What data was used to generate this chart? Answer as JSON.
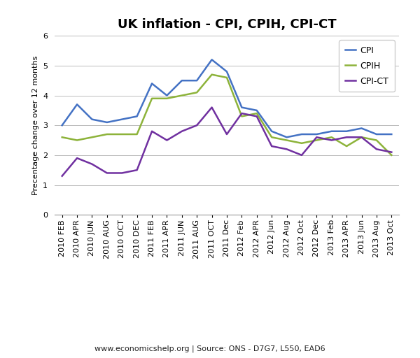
{
  "title": "UK inflation - CPI, CPIH, CPI-CT",
  "ylabel": "Precentage change over 12 months",
  "source_text": "www.economicshelp.org | Source: ONS - D7G7, L550, EAD6",
  "xlabels": [
    "2010 FEB",
    "2010 APR",
    "2010 JUN",
    "2010 AUG",
    "2010 OCT",
    "2010 DEC",
    "2011 FEB",
    "2011 APR",
    "2011 JUN",
    "2011 AUG",
    "2011 OCT",
    "2011 Dec",
    "2012 Feb",
    "2012 APR",
    "2012 Jun",
    "2012 Aug",
    "2012 Oct",
    "2012 Dec",
    "2013 Feb",
    "2013 APR",
    "2013 Jun",
    "2013 Aug",
    "2013 Oct"
  ],
  "cpi": [
    3.0,
    3.7,
    3.2,
    3.1,
    3.2,
    3.3,
    4.4,
    4.0,
    4.5,
    4.5,
    5.2,
    4.8,
    3.6,
    3.5,
    2.8,
    2.6,
    2.7,
    2.7,
    2.8,
    2.8,
    2.9,
    2.7,
    2.7
  ],
  "cpih": [
    2.6,
    2.5,
    2.6,
    2.7,
    2.7,
    2.7,
    3.9,
    3.9,
    4.0,
    4.1,
    4.7,
    4.6,
    3.3,
    3.4,
    2.6,
    2.5,
    2.4,
    2.5,
    2.6,
    2.3,
    2.6,
    2.5,
    2.0
  ],
  "cpict": [
    1.3,
    1.9,
    1.7,
    1.4,
    1.4,
    1.5,
    2.8,
    2.5,
    2.8,
    3.0,
    3.6,
    2.7,
    3.4,
    3.3,
    2.3,
    2.2,
    2.0,
    2.6,
    2.5,
    2.6,
    2.6,
    2.2,
    2.1
  ],
  "cpi_color": "#4472C4",
  "cpih_color": "#8DB33A",
  "cpict_color": "#7030A0",
  "ylim": [
    0,
    6
  ],
  "yticks": [
    0,
    1,
    2,
    3,
    4,
    5,
    6
  ],
  "bg_color": "#FFFFFF",
  "grid_color": "#BBBBBB",
  "line_width": 1.8,
  "title_fontsize": 13,
  "axis_label_fontsize": 8,
  "tick_fontsize": 8,
  "legend_fontsize": 9,
  "source_fontsize": 8
}
